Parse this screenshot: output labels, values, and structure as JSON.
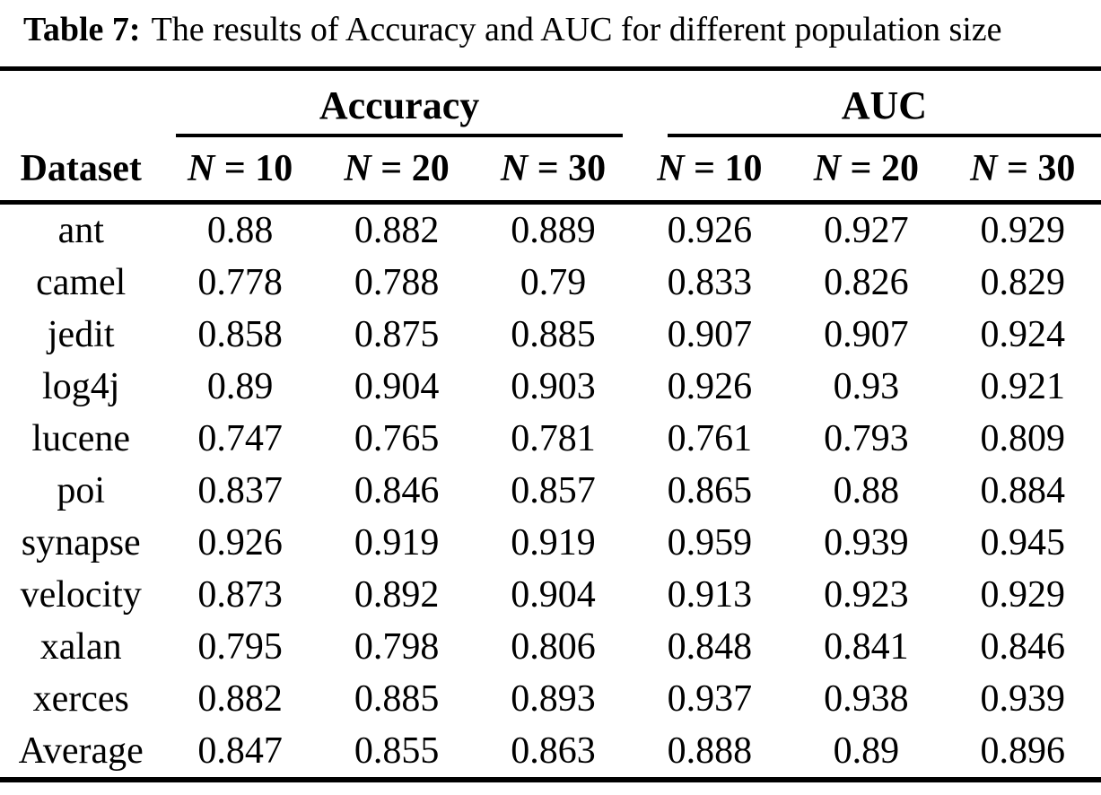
{
  "caption": {
    "label": "Table 7:",
    "text": "The results of Accuracy and AUC for different population size"
  },
  "table": {
    "dataset_header": "Dataset",
    "groups": {
      "accuracy": "Accuracy",
      "auc": "AUC"
    },
    "subcols": [
      {
        "var": "N",
        "eq": " = 10"
      },
      {
        "var": "N",
        "eq": " = 20"
      },
      {
        "var": "N",
        "eq": " = 30"
      }
    ],
    "rows": [
      {
        "name": "ant",
        "values": [
          "0.88",
          "0.882",
          "0.889",
          "0.926",
          "0.927",
          "0.929"
        ]
      },
      {
        "name": "camel",
        "values": [
          "0.778",
          "0.788",
          "0.79",
          "0.833",
          "0.826",
          "0.829"
        ]
      },
      {
        "name": "jedit",
        "values": [
          "0.858",
          "0.875",
          "0.885",
          "0.907",
          "0.907",
          "0.924"
        ]
      },
      {
        "name": "log4j",
        "values": [
          "0.89",
          "0.904",
          "0.903",
          "0.926",
          "0.93",
          "0.921"
        ]
      },
      {
        "name": "lucene",
        "values": [
          "0.747",
          "0.765",
          "0.781",
          "0.761",
          "0.793",
          "0.809"
        ]
      },
      {
        "name": "poi",
        "values": [
          "0.837",
          "0.846",
          "0.857",
          "0.865",
          "0.88",
          "0.884"
        ]
      },
      {
        "name": "synapse",
        "values": [
          "0.926",
          "0.919",
          "0.919",
          "0.959",
          "0.939",
          "0.945"
        ]
      },
      {
        "name": "velocity",
        "values": [
          "0.873",
          "0.892",
          "0.904",
          "0.913",
          "0.923",
          "0.929"
        ]
      },
      {
        "name": "xalan",
        "values": [
          "0.795",
          "0.798",
          "0.806",
          "0.848",
          "0.841",
          "0.846"
        ]
      },
      {
        "name": "xerces",
        "values": [
          "0.882",
          "0.885",
          "0.893",
          "0.937",
          "0.938",
          "0.939"
        ]
      },
      {
        "name": "Average",
        "values": [
          "0.847",
          "0.855",
          "0.863",
          "0.888",
          "0.89",
          "0.896"
        ]
      }
    ],
    "colors": {
      "text": "#000000",
      "background": "#ffffff",
      "rule": "#000000"
    }
  }
}
